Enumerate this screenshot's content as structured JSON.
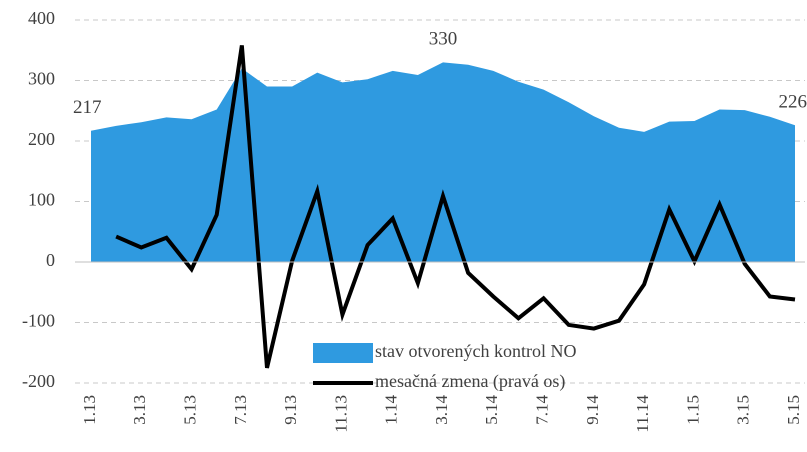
{
  "chart_data": {
    "type": "area_line",
    "categories": [
      "1.13",
      null,
      "3.13",
      null,
      "5.13",
      null,
      "7.13",
      null,
      "9.13",
      null,
      "11.13",
      null,
      "1.14",
      null,
      "3.14",
      null,
      "5.14",
      null,
      "7.14",
      null,
      "9.14",
      null,
      "11.14",
      null,
      "1.15",
      null,
      "3.15",
      null,
      "5.15"
    ],
    "series": [
      {
        "name": "stav otvorených kontrol NO",
        "type": "area",
        "color": "#2f9ae0",
        "values": [
          217,
          225,
          231,
          239,
          236,
          252,
          320,
          290,
          290,
          313,
          297,
          302,
          316,
          309,
          330,
          326,
          316,
          298,
          285,
          264,
          241,
          222,
          215,
          232,
          233,
          252,
          251,
          240,
          226
        ]
      },
      {
        "name": "mesačná zmena (pravá os)",
        "type": "line",
        "color": "#000000",
        "values": [
          null,
          42,
          24,
          40,
          -12,
          78,
          358,
          -175,
          2,
          117,
          -87,
          28,
          72,
          -35,
          109,
          -18,
          -57,
          -93,
          -60,
          -104,
          -110,
          -97,
          -37,
          87,
          1,
          95,
          -3,
          -57,
          -62
        ]
      }
    ],
    "labeled_points": [
      0,
      14,
      28
    ],
    "ylim": [
      -200,
      400
    ],
    "yticks": [
      -200,
      -100,
      0,
      100,
      200,
      300,
      400
    ],
    "grid": true,
    "legend": "bottom"
  }
}
